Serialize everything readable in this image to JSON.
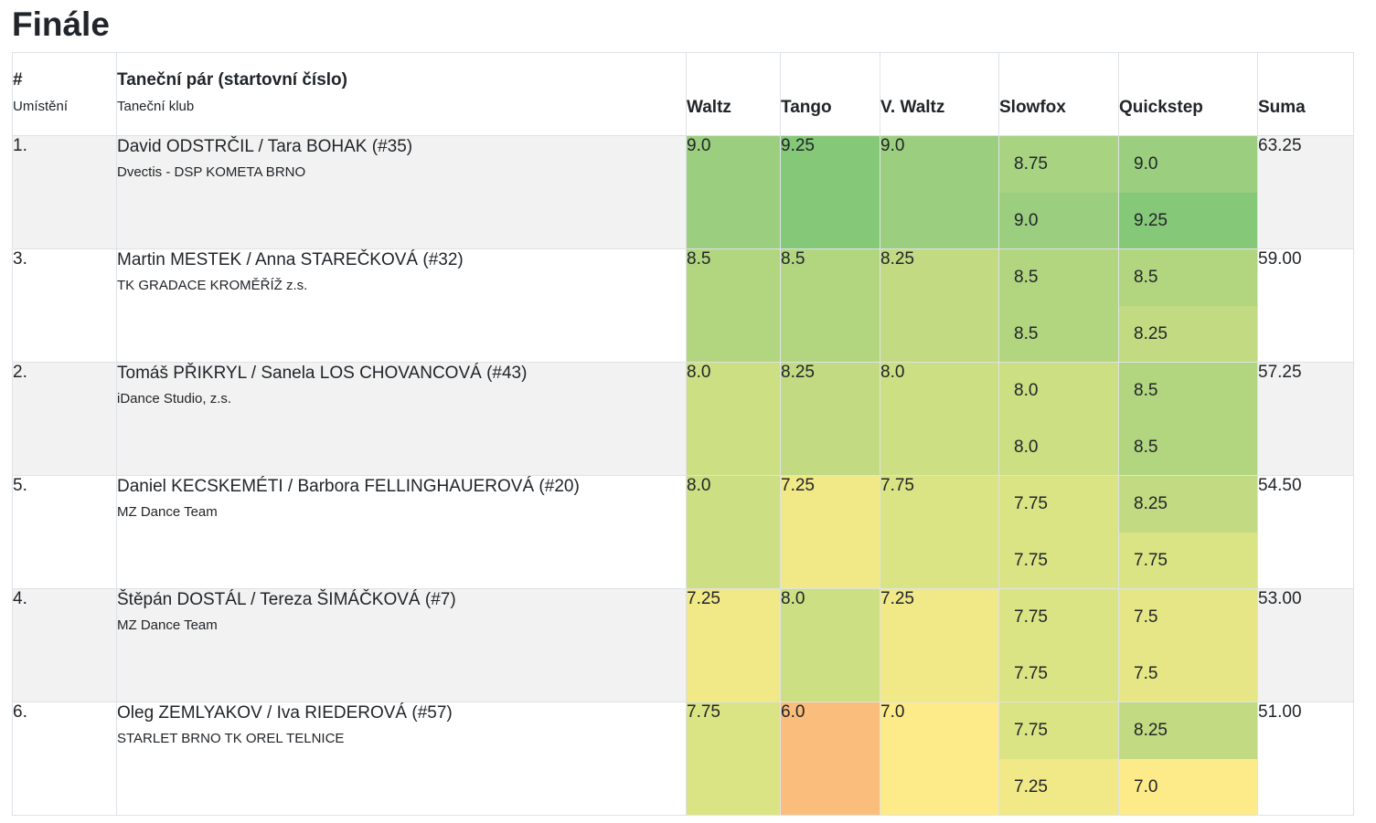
{
  "page_title": "Finále",
  "header": {
    "rank": "#",
    "rank_sub": "Umístění",
    "pair": "Taneční pár (startovní číslo)",
    "pair_sub": "Taneční klub",
    "dances": [
      "Waltz",
      "Tango",
      "V. Waltz",
      "Slowfox",
      "Quickstep"
    ],
    "suma": "Suma"
  },
  "colors": {
    "c925": "#85c878",
    "c90": "#9bcf7f",
    "c875": "#a8d381",
    "c85": "#b2d580",
    "c825": "#c2da81",
    "c80": "#ccdf83",
    "c775": "#dbe484",
    "c725": "#f1e887",
    "c70": "#f9e988",
    "c60": "#fabd7b"
  },
  "rows": [
    {
      "rank": "1.",
      "pair": "David ODSTRČIL / Tara BOHAK (#35)",
      "club": "Dvectis - DSP KOMETA BRNO",
      "scores": [
        {
          "v": "9.0",
          "c": "#9bcf7f"
        },
        {
          "v": "9.25",
          "c": "#85c878"
        },
        {
          "v": "9.0",
          "c": "#9bcf7f"
        },
        [
          {
            "v": "8.75",
            "c": "#a8d381"
          },
          {
            "v": "9.0",
            "c": "#9bcf7f"
          }
        ],
        [
          {
            "v": "9.0",
            "c": "#9bcf7f"
          },
          {
            "v": "9.25",
            "c": "#85c878"
          }
        ]
      ],
      "suma": "63.25"
    },
    {
      "rank": "3.",
      "pair": "Martin MESTEK / Anna STAREČKOVÁ (#32)",
      "club": "TK GRADACE KROMĚŘÍŽ z.s.",
      "scores": [
        {
          "v": "8.5",
          "c": "#b2d580"
        },
        {
          "v": "8.5",
          "c": "#b2d580"
        },
        {
          "v": "8.25",
          "c": "#c2da81"
        },
        [
          {
            "v": "8.5",
            "c": "#b2d580"
          },
          {
            "v": "8.5",
            "c": "#b2d580"
          }
        ],
        [
          {
            "v": "8.5",
            "c": "#b2d580"
          },
          {
            "v": "8.25",
            "c": "#c2da81"
          }
        ]
      ],
      "suma": "59.00"
    },
    {
      "rank": "2.",
      "pair": "Tomáš PŘIKRYL / Sanela LOS CHOVANCOVÁ (#43)",
      "club": "iDance Studio, z.s.",
      "scores": [
        {
          "v": "8.0",
          "c": "#ccdf83"
        },
        {
          "v": "8.25",
          "c": "#c2da81"
        },
        {
          "v": "8.0",
          "c": "#ccdf83"
        },
        [
          {
            "v": "8.0",
            "c": "#ccdf83"
          },
          {
            "v": "8.0",
            "c": "#ccdf83"
          }
        ],
        [
          {
            "v": "8.5",
            "c": "#b2d580"
          },
          {
            "v": "8.5",
            "c": "#b2d580"
          }
        ]
      ],
      "suma": "57.25"
    },
    {
      "rank": "5.",
      "pair": "Daniel KECSKEMÉTI / Barbora FELLINGHAUEROVÁ (#20)",
      "club": "MZ Dance Team",
      "scores": [
        {
          "v": "8.0",
          "c": "#ccdf83"
        },
        {
          "v": "7.25",
          "c": "#f1e887"
        },
        {
          "v": "7.75",
          "c": "#dbe484"
        },
        [
          {
            "v": "7.75",
            "c": "#dbe484"
          },
          {
            "v": "7.75",
            "c": "#dbe484"
          }
        ],
        [
          {
            "v": "8.25",
            "c": "#c2da81"
          },
          {
            "v": "7.75",
            "c": "#dbe484"
          }
        ]
      ],
      "suma": "54.50"
    },
    {
      "rank": "4.",
      "pair": "Štěpán DOSTÁL / Tereza ŠIMÁČKOVÁ (#7)",
      "club": "MZ Dance Team",
      "scores": [
        {
          "v": "7.25",
          "c": "#f1e887"
        },
        {
          "v": "8.0",
          "c": "#ccdf83"
        },
        {
          "v": "7.25",
          "c": "#f1e887"
        },
        [
          {
            "v": "7.75",
            "c": "#dbe484"
          },
          {
            "v": "7.75",
            "c": "#dbe484"
          }
        ],
        [
          {
            "v": "7.5",
            "c": "#e6e686"
          },
          {
            "v": "7.5",
            "c": "#e6e686"
          }
        ]
      ],
      "suma": "53.00"
    },
    {
      "rank": "6.",
      "pair": "Oleg ZEMLYAKOV / Iva RIEDEROVÁ (#57)",
      "club": "STARLET BRNO TK OREL TELNICE",
      "scores": [
        {
          "v": "7.75",
          "c": "#dbe484"
        },
        {
          "v": "6.0",
          "c": "#fabd7b"
        },
        {
          "v": "7.0",
          "c": "#fdea89"
        },
        [
          {
            "v": "7.75",
            "c": "#dbe484"
          },
          {
            "v": "7.25",
            "c": "#f1e887"
          }
        ],
        [
          {
            "v": "8.25",
            "c": "#c2da81"
          },
          {
            "v": "7.0",
            "c": "#fdea89"
          }
        ]
      ],
      "suma": "51.00"
    }
  ]
}
